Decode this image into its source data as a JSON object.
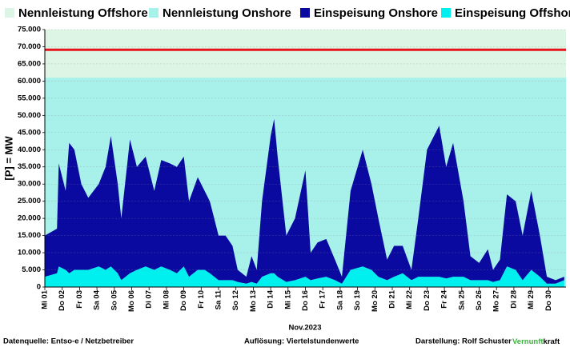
{
  "chart_data": {
    "type": "area",
    "x_label": "Nov.2023",
    "y_label": "[P] = MW",
    "xlim": [
      0,
      30
    ],
    "ylim": [
      0,
      75000
    ],
    "yticks": [
      0,
      {
        "value": 5000,
        "label": "5.000"
      },
      {
        "value": 10000,
        "label": "10.000"
      },
      {
        "value": 15000,
        "label": "15.000"
      },
      {
        "value": 20000,
        "label": "20.000"
      },
      {
        "value": 25000,
        "label": "25.000"
      },
      {
        "value": 30000,
        "label": "30.000"
      },
      {
        "value": 35000,
        "label": "35.000"
      },
      {
        "value": 40000,
        "label": "40.000"
      },
      {
        "value": 45000,
        "label": "45.000"
      },
      {
        "value": 50000,
        "label": "50.000"
      },
      {
        "value": 55000,
        "label": "55.000"
      },
      {
        "value": 60000,
        "label": "60.000"
      },
      {
        "value": 65000,
        "label": "65.000"
      },
      {
        "value": 70000,
        "label": "70.000"
      },
      {
        "value": 75000,
        "label": "75.000"
      }
    ],
    "xticks": [
      {
        "value": 0,
        "label": "Mi 01"
      },
      {
        "value": 1,
        "label": "Do 02"
      },
      {
        "value": 2,
        "label": "Fr 03"
      },
      {
        "value": 3,
        "label": "Sa 04"
      },
      {
        "value": 4,
        "label": "So 05"
      },
      {
        "value": 5,
        "label": "Mo 06"
      },
      {
        "value": 6,
        "label": "Di 07"
      },
      {
        "value": 7,
        "label": "Mi 08"
      },
      {
        "value": 8,
        "label": "Do 09"
      },
      {
        "value": 9,
        "label": "Fr 10"
      },
      {
        "value": 10,
        "label": "Sa 11"
      },
      {
        "value": 11,
        "label": "So 12"
      },
      {
        "value": 12,
        "label": "Mo 13"
      },
      {
        "value": 13,
        "label": "Di 14"
      },
      {
        "value": 14,
        "label": "Mi 15"
      },
      {
        "value": 15,
        "label": "Do 16"
      },
      {
        "value": 16,
        "label": "Fr 17"
      },
      {
        "value": 17,
        "label": "Sa 18"
      },
      {
        "value": 18,
        "label": "So 19"
      },
      {
        "value": 19,
        "label": "Mo 20"
      },
      {
        "value": 20,
        "label": "Di 21"
      },
      {
        "value": 21,
        "label": "Mi 22"
      },
      {
        "value": 22,
        "label": "Do 23"
      },
      {
        "value": 23,
        "label": "Fr 24"
      },
      {
        "value": 24,
        "label": "Sa 25"
      },
      {
        "value": 25,
        "label": "So 26"
      },
      {
        "value": 26,
        "label": "Mo 27"
      },
      {
        "value": 27,
        "label": "Di 28"
      },
      {
        "value": 28,
        "label": "Mi 29"
      },
      {
        "value": 29,
        "label": "Do 30"
      }
    ],
    "grid": true,
    "x": [
      0,
      0.7,
      0.8,
      1.2,
      1.4,
      1.7,
      2.1,
      2.5,
      3.1,
      3.5,
      3.8,
      4.2,
      4.4,
      4.9,
      5.3,
      5.8,
      6.3,
      6.7,
      7.2,
      7.6,
      8.0,
      8.3,
      8.8,
      9.2,
      9.5,
      10.0,
      10.4,
      10.8,
      11.1,
      11.6,
      11.9,
      12.2,
      12.5,
      13.0,
      13.2,
      13.4,
      13.9,
      14.4,
      15.0,
      15.3,
      15.7,
      16.2,
      16.7,
      17.1,
      17.6,
      18.3,
      18.8,
      19.2,
      19.7,
      20.1,
      20.6,
      21.1,
      21.5,
      22.0,
      22.7,
      23.1,
      23.5,
      24.1,
      24.5,
      25.0,
      25.5,
      25.8,
      26.2,
      26.6,
      27.1,
      27.5,
      28.0,
      28.5,
      28.9,
      29.4,
      29.9
    ],
    "series": [
      {
        "name": "Nennleistung Offshore",
        "color": "#dcf5e4",
        "edge_color": "#e8141c",
        "x": [
          0,
          30
        ],
        "values": [
          8100,
          8100
        ]
      },
      {
        "name": "Nennleistung Onshore",
        "color": "#a8f0ea",
        "x": [
          0,
          30
        ],
        "values": [
          61000,
          61000
        ]
      },
      {
        "name": "Einspeisung Onshore",
        "color": "#0a0aa0",
        "values": [
          12000,
          13000,
          30000,
          23000,
          38000,
          35000,
          25000,
          21000,
          24000,
          30000,
          38000,
          26000,
          18000,
          39000,
          30000,
          32000,
          23000,
          31000,
          31000,
          31000,
          32000,
          22000,
          27000,
          23000,
          21000,
          13000,
          13000,
          10000,
          3500,
          2000,
          7500,
          4000,
          22000,
          40000,
          45000,
          35000,
          13500,
          18000,
          31000,
          8000,
          10500,
          11000,
          6000,
          2000,
          23000,
          34000,
          25000,
          17000,
          6000,
          9000,
          8000,
          3000,
          17000,
          37000,
          44000,
          32500,
          39000,
          22000,
          7000,
          5000,
          9000,
          3500,
          6000,
          21000,
          20000,
          13000,
          23000,
          12000,
          2000,
          1000,
          1000
        ]
      },
      {
        "name": "Einspeisung Offshore",
        "color": "#00f0f0",
        "values": [
          3000,
          4000,
          6000,
          5000,
          4000,
          5000,
          5000,
          5000,
          6000,
          5000,
          6000,
          4000,
          2000,
          4000,
          5000,
          6000,
          5000,
          6000,
          5000,
          4000,
          6000,
          3000,
          5000,
          5000,
          4000,
          2000,
          2000,
          2000,
          1500,
          1000,
          1500,
          1000,
          3000,
          4000,
          4000,
          3000,
          1500,
          2000,
          3000,
          2000,
          2500,
          3000,
          2000,
          1000,
          5000,
          6000,
          5000,
          3000,
          2000,
          3000,
          4000,
          2000,
          3000,
          3000,
          3000,
          2500,
          3000,
          3000,
          2000,
          2000,
          2000,
          1500,
          2000,
          6000,
          5000,
          2000,
          5000,
          3000,
          1000,
          1000,
          2000
        ]
      }
    ]
  },
  "footer": {
    "source": "Datenquelle:  Entso-e  / Netzbetreiber",
    "resolution": "Auflösung: Viertelstundenwerte",
    "author": "Darstellung:  Rolf Schuster",
    "logo": [
      "Vernunft",
      "kraft"
    ]
  }
}
